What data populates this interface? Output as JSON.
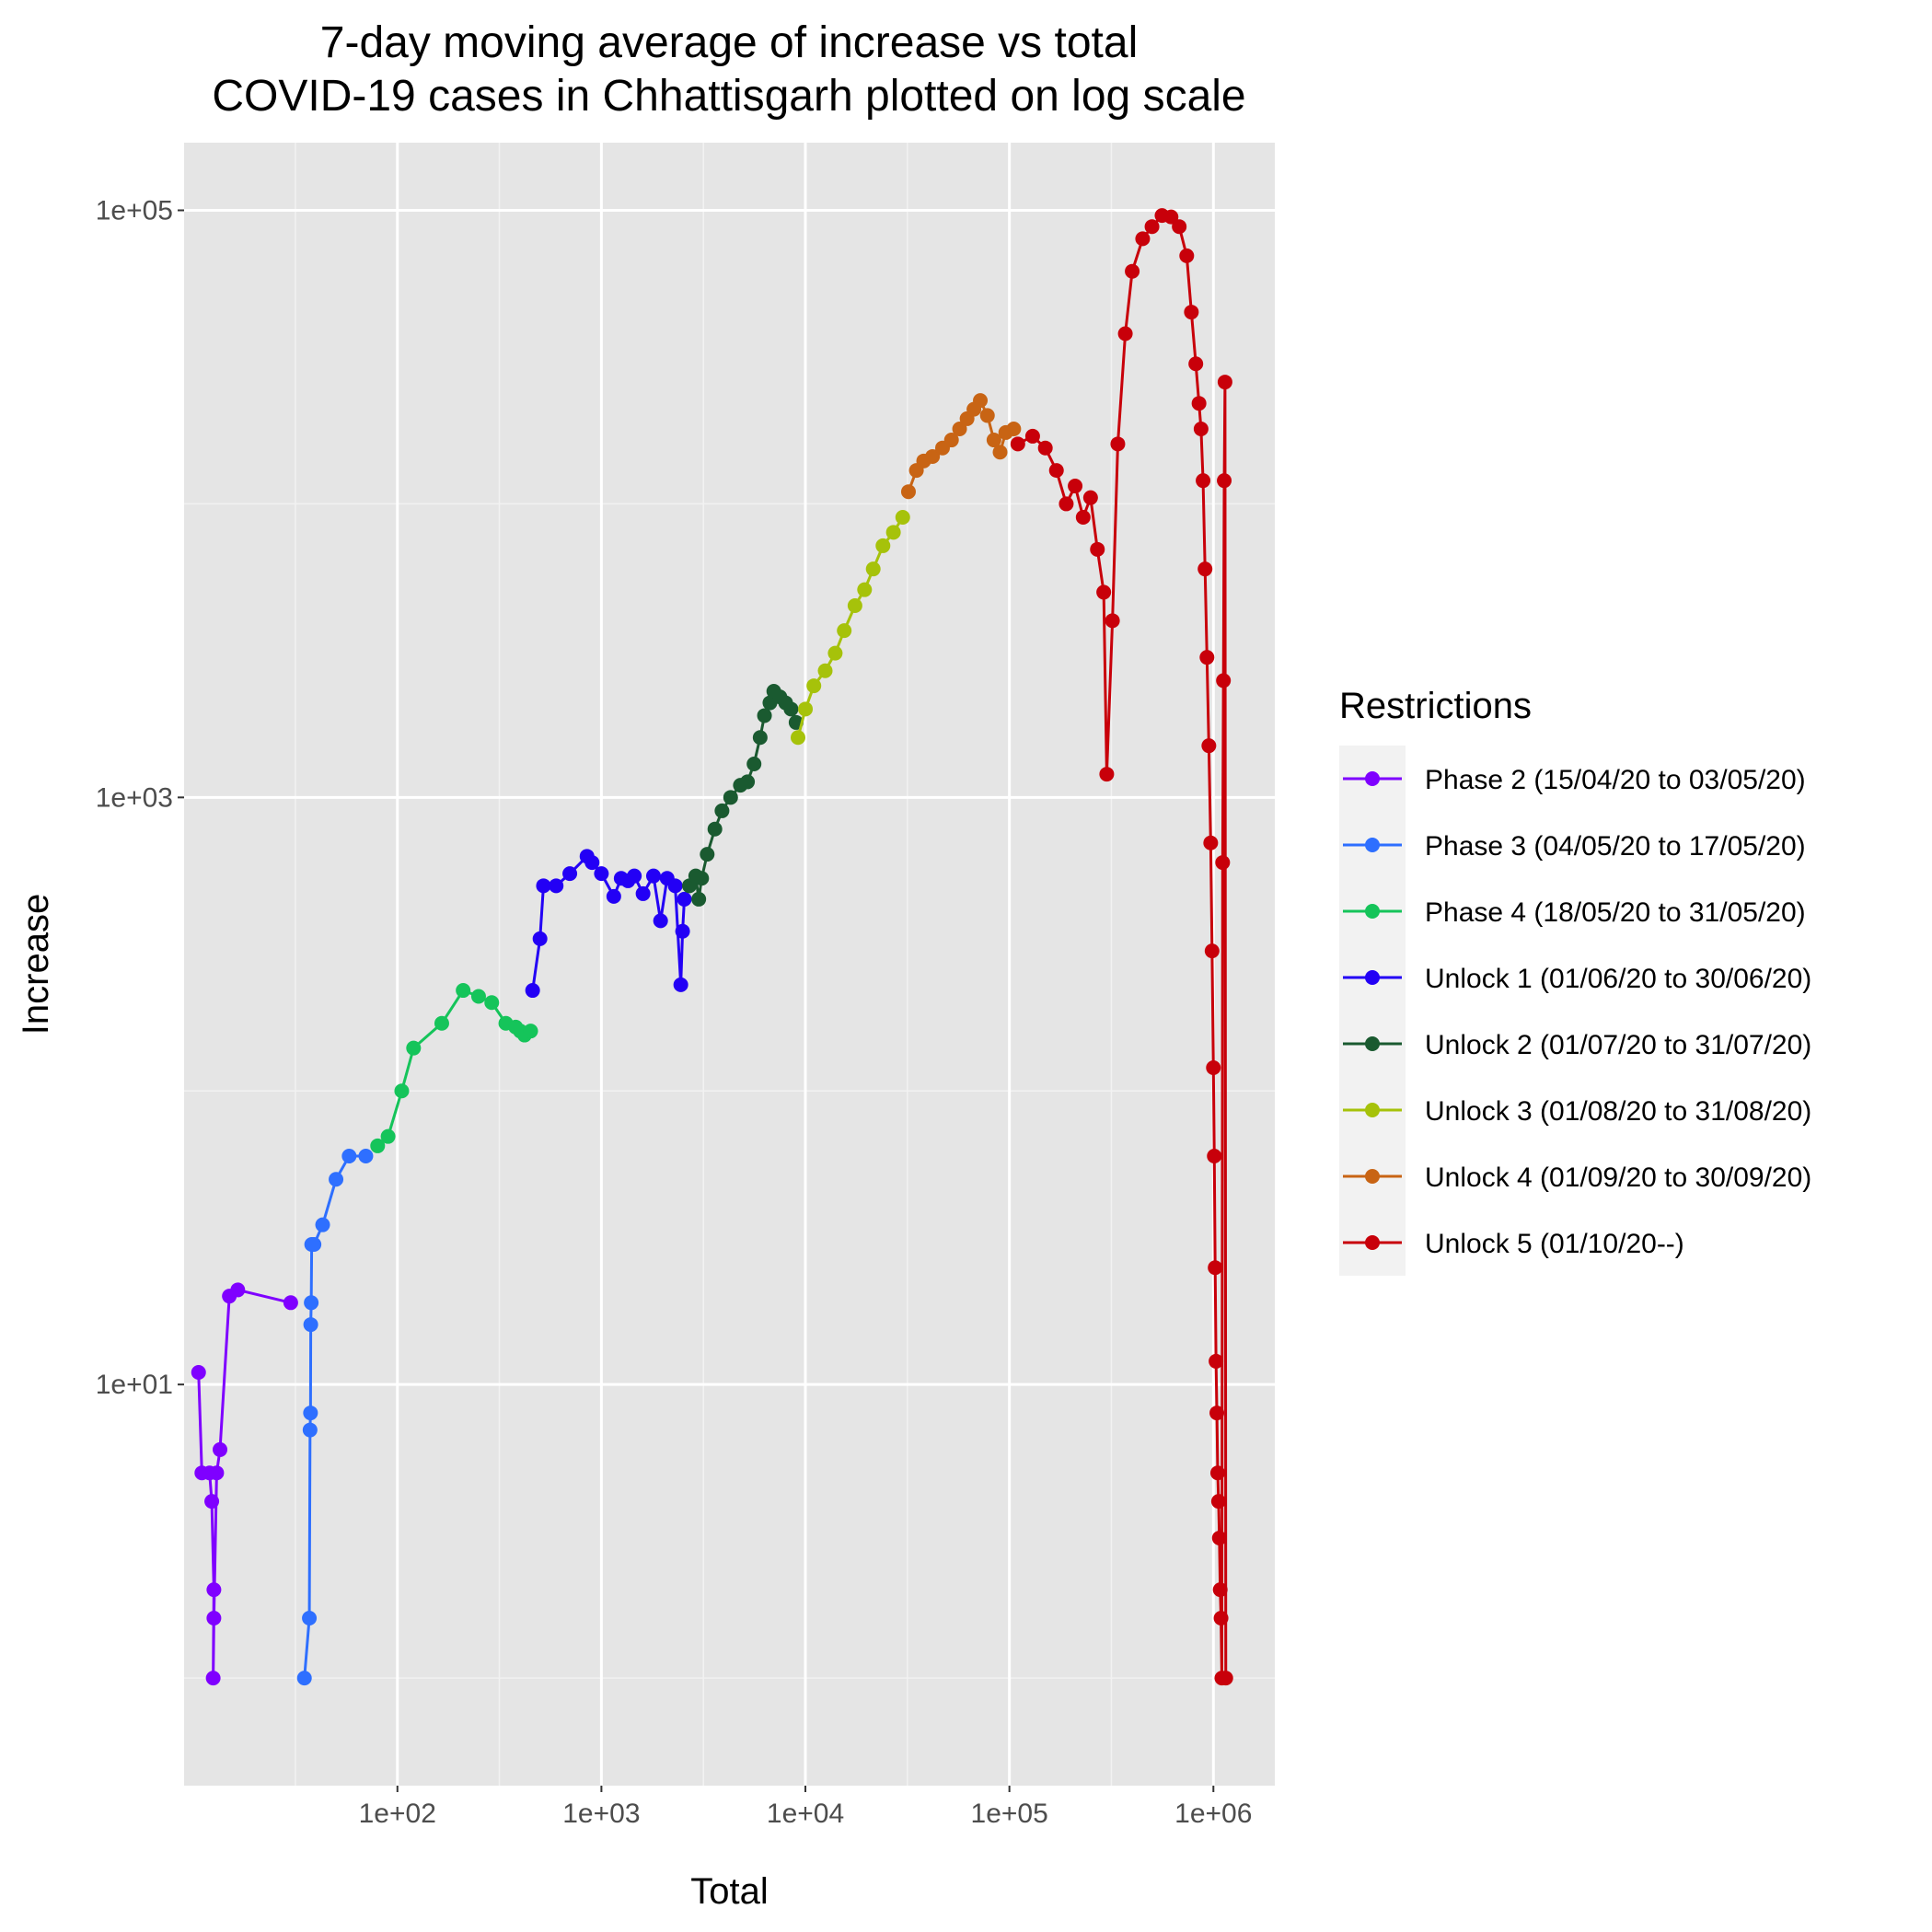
{
  "chart_data": {
    "type": "line",
    "title": "7-day moving average of increase vs total\nCOVID-19 cases in Chhattisgarh plotted on log scale",
    "xlabel": "Total",
    "ylabel": "Increase",
    "x_scale": "log10",
    "y_scale": "log10",
    "xlim": [
      9,
      2000000
    ],
    "ylim": [
      0.43,
      170000
    ],
    "x_ticks": [
      100,
      1000,
      10000,
      100000,
      1000000
    ],
    "x_tick_labels": [
      "1e+02",
      "1e+03",
      "1e+04",
      "1e+05",
      "1e+06"
    ],
    "y_ticks": [
      10,
      1000,
      100000
    ],
    "y_tick_labels": [
      "1e+01",
      "1e+03",
      "1e+05"
    ],
    "grid": true,
    "panel_background": "#e5e5e5",
    "legend": {
      "title": "Restrictions",
      "position": "right"
    },
    "series": [
      {
        "name": "Phase 2 (15/04/20 to 03/05/20)",
        "color": "#7f00ff",
        "x": [
          10.6,
          11,
          12,
          12.3,
          12.6,
          12.5,
          12.6,
          13,
          13.5,
          15,
          16.5,
          30
        ],
        "y": [
          11,
          5,
          5,
          4,
          2,
          1,
          1.6,
          5,
          6,
          20,
          21,
          19
        ]
      },
      {
        "name": "Phase 3 (04/05/20 to 17/05/20)",
        "color": "#2e6fff",
        "x": [
          35,
          37,
          37.3,
          37.5,
          37.6,
          37.8,
          38,
          39,
          43,
          50,
          58,
          70
        ],
        "y": [
          1,
          1.6,
          7,
          8,
          16,
          19,
          30,
          30,
          35,
          50,
          60,
          60
        ]
      },
      {
        "name": "Phase 4 (18/05/20 to 31/05/20)",
        "color": "#15c45a",
        "x": [
          80,
          90,
          105,
          120,
          165,
          210,
          250,
          290,
          340,
          380,
          400,
          420,
          450
        ],
        "y": [
          65,
          70,
          100,
          140,
          170,
          220,
          210,
          200,
          170,
          165,
          160,
          155,
          160
        ]
      },
      {
        "name": "Unlock 1 (01/06/20 to 30/06/20)",
        "color": "#2300f5",
        "x": [
          460,
          500,
          520,
          600,
          700,
          850,
          900,
          1000,
          1150,
          1250,
          1350,
          1450,
          1600,
          1800,
          1950,
          2100,
          2300,
          2450,
          2500,
          2550
        ],
        "y": [
          220,
          330,
          500,
          500,
          550,
          630,
          600,
          550,
          460,
          530,
          520,
          540,
          470,
          540,
          380,
          530,
          500,
          230,
          350,
          450
        ]
      },
      {
        "name": "Unlock 2 (01/07/20 to 31/07/20)",
        "color": "#1a5a30",
        "x": [
          2700,
          2900,
          3000,
          3100,
          3300,
          3600,
          3900,
          4300,
          4800,
          5200,
          5600,
          6000,
          6300,
          6700,
          7000,
          7500,
          8000,
          8500,
          9000
        ],
        "y": [
          500,
          540,
          450,
          530,
          640,
          780,
          900,
          1000,
          1100,
          1130,
          1300,
          1600,
          1900,
          2100,
          2300,
          2200,
          2100,
          2000,
          1800
        ]
      },
      {
        "name": "Unlock 3 (01/08/20 to 31/08/20)",
        "color": "#a6c20a",
        "x": [
          9200,
          10000,
          11000,
          12500,
          14000,
          15500,
          17500,
          19500,
          21500,
          24000,
          27000,
          30000
        ],
        "y": [
          1600,
          2000,
          2400,
          2700,
          3100,
          3700,
          4500,
          5100,
          6000,
          7200,
          8000,
          9000
        ]
      },
      {
        "name": "Unlock 4 (01/09/20 to 30/09/20)",
        "color": "#c86414",
        "x": [
          32000,
          35000,
          38000,
          42000,
          47000,
          52000,
          57000,
          62000,
          67000,
          72000,
          78000,
          84000,
          90000,
          96000,
          105000
        ],
        "y": [
          11000,
          13000,
          14000,
          14500,
          15500,
          16500,
          18000,
          19500,
          21000,
          22500,
          20000,
          16500,
          15000,
          17500,
          18000
        ]
      },
      {
        "name": "Unlock 5 (01/10/20--)",
        "color": "#c8000a",
        "x": [
          110000,
          130000,
          150000,
          170000,
          190000,
          210000,
          230000,
          250000,
          270000,
          290000,
          300000,
          320000,
          340000,
          370000,
          400000,
          450000,
          500000,
          560000,
          620000,
          680000,
          740000,
          780000,
          820000,
          850000,
          870000,
          890000,
          910000,
          930000,
          950000,
          970000,
          985000,
          1000000,
          1010000,
          1020000,
          1030000,
          1040000,
          1050000,
          1060000,
          1070000,
          1080000,
          1090000,
          1100000,
          1110000,
          1120000,
          1130000,
          1140000,
          1150000
        ],
        "y": [
          16000,
          17000,
          15500,
          13000,
          10000,
          11500,
          9000,
          10500,
          7000,
          5000,
          1200,
          4000,
          16000,
          38000,
          62000,
          80000,
          88000,
          96000,
          95000,
          88000,
          70000,
          45000,
          30000,
          22000,
          18000,
          12000,
          6000,
          3000,
          1500,
          700,
          300,
          120,
          60,
          25,
          12,
          8,
          5,
          4,
          3,
          2,
          1.6,
          1,
          600,
          2500,
          12000,
          26000,
          1
        ]
      }
    ]
  }
}
